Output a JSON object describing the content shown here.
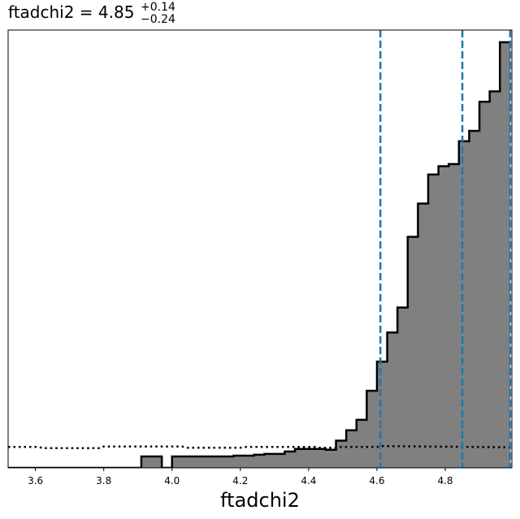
{
  "chart_data": {
    "type": "histogram",
    "title": {
      "prefix": "ftadchi2 = 4.85",
      "upper": "+0.14",
      "lower": "−0.24"
    },
    "xlabel": "ftadchi2",
    "ylabel": "",
    "xlim": [
      3.52,
      4.995
    ],
    "ylim": [
      0,
      1.0
    ],
    "xticks": [
      3.6,
      3.8,
      4.0,
      4.2,
      4.4,
      4.6,
      4.8
    ],
    "xtick_labels": [
      "3.6",
      "3.8",
      "4.0",
      "4.2",
      "4.4",
      "4.6",
      "4.8"
    ],
    "yticks_shown": false,
    "grid": false,
    "posterior": {
      "bin_edges": [
        3.52,
        3.55,
        3.58,
        3.61,
        3.64,
        3.67,
        3.7,
        3.73,
        3.76,
        3.79,
        3.82,
        3.85,
        3.88,
        3.91,
        3.94,
        3.97,
        4.0,
        4.03,
        4.06,
        4.09,
        4.12,
        4.15,
        4.18,
        4.21,
        4.24,
        4.27,
        4.3,
        4.33,
        4.36,
        4.39,
        4.42,
        4.45,
        4.48,
        4.51,
        4.54,
        4.57,
        4.6,
        4.63,
        4.66,
        4.69,
        4.72,
        4.75,
        4.78,
        4.81,
        4.84,
        4.87,
        4.9,
        4.93,
        4.96,
        4.99
      ],
      "counts": [
        0,
        0,
        0,
        0,
        0,
        0,
        0,
        0,
        0,
        0,
        0,
        0,
        0,
        0.002,
        0.002,
        0,
        0.002,
        0.002,
        0.002,
        0.002,
        0.002,
        0.002,
        0.004,
        0.004,
        0.006,
        0.008,
        0.008,
        0.014,
        0.02,
        0.02,
        0.02,
        0.018,
        0.04,
        0.065,
        0.09,
        0.16,
        0.23,
        0.3,
        0.36,
        0.53,
        0.61,
        0.68,
        0.7,
        0.705,
        0.76,
        0.785,
        0.855,
        0.88,
        0.998
      ],
      "fill_color": "#808080",
      "edge_color": "#000000"
    },
    "prior": {
      "style": "dotted",
      "color": "#000000",
      "x": [
        3.52,
        3.61,
        3.62,
        3.79,
        3.8,
        4.03,
        4.04,
        4.2,
        4.21,
        4.42,
        4.43,
        4.48,
        4.49,
        4.6,
        4.61,
        4.98,
        4.995
      ],
      "y": [
        0.025,
        0.025,
        0.022,
        0.022,
        0.026,
        0.026,
        0.023,
        0.023,
        0.025,
        0.025,
        0.023,
        0.023,
        0.025,
        0.025,
        0.027,
        0.024,
        0.024
      ]
    },
    "quantile_lines": {
      "values": [
        4.61,
        4.85,
        4.99
      ],
      "color": "#1f77b4",
      "style": "dashed"
    }
  }
}
